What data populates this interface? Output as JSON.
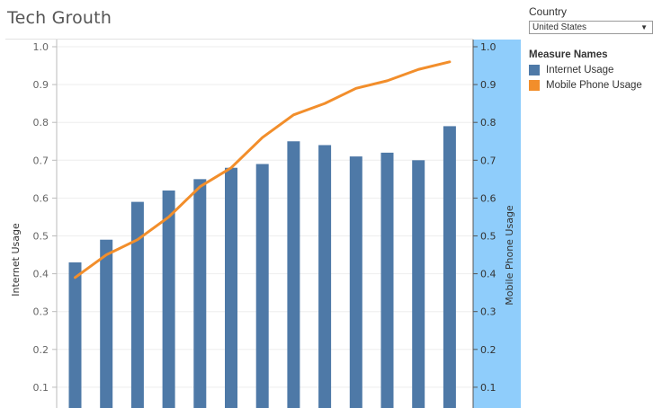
{
  "title": "Tech Grouth",
  "filter": {
    "label": "Country",
    "selected": "United States"
  },
  "legend": {
    "title": "Measure Names",
    "items": [
      {
        "label": "Internet Usage",
        "color": "#4e79a7"
      },
      {
        "label": "Mobile Phone Usage",
        "color": "#f28e2b"
      }
    ]
  },
  "chart_data": {
    "type": "bar",
    "title": "Tech Grouth",
    "xlabel": "",
    "ylabel": "Internet Usage",
    "y2label": "Mobile Phone Usage",
    "ylim": [
      0.05,
      1.02
    ],
    "y2lim": [
      0.05,
      1.02
    ],
    "yticks": [
      0.1,
      0.2,
      0.3,
      0.4,
      0.5,
      0.6,
      0.7,
      0.8,
      0.9,
      1.0
    ],
    "y2_axis_highlight": "#8fcdfb",
    "grid": true,
    "series": [
      {
        "name": "Internet Usage",
        "type": "bar",
        "axis": "left",
        "color": "#4e79a7",
        "values": [
          0.43,
          0.49,
          0.59,
          0.62,
          0.65,
          0.68,
          0.69,
          0.75,
          0.74,
          0.71,
          0.72,
          0.7,
          0.79
        ]
      },
      {
        "name": "Mobile Phone Usage",
        "type": "line",
        "axis": "right",
        "color": "#f28e2b",
        "values": [
          0.39,
          0.45,
          0.49,
          0.55,
          0.63,
          0.68,
          0.76,
          0.82,
          0.85,
          0.89,
          0.91,
          0.94,
          0.96
        ]
      }
    ]
  }
}
